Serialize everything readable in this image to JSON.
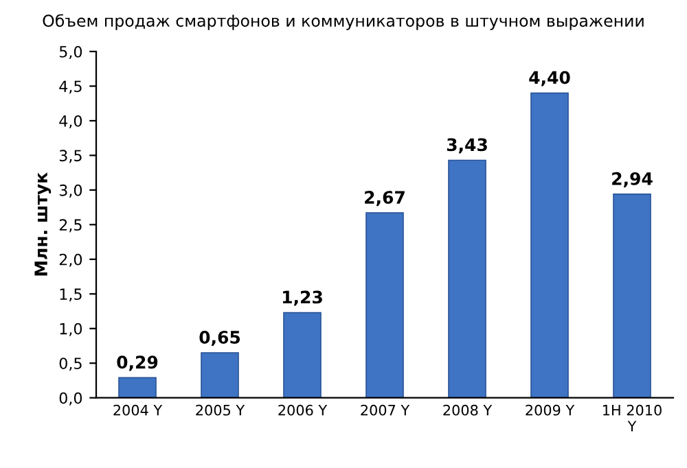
{
  "chart_data": {
    "type": "bar",
    "title": "Объем продаж смартфонов и коммуникаторов в штучном выражении",
    "ylabel": "Млн. штук",
    "categories": [
      "2004 Y",
      "2005 Y",
      "2006 Y",
      "2007 Y",
      "2008 Y",
      "2009 Y",
      "1H 2010\nY"
    ],
    "values": [
      0.29,
      0.65,
      1.23,
      2.67,
      3.43,
      4.4,
      2.94
    ],
    "value_labels": [
      "0,29",
      "0,65",
      "1,23",
      "2,67",
      "3,43",
      "4,40",
      "2,94"
    ],
    "color": "#3f74c4",
    "ylim": [
      0,
      5
    ],
    "yticks": [
      {
        "value": 0,
        "label": "0,0"
      },
      {
        "value": 0.5,
        "label": "0,5"
      },
      {
        "value": 1,
        "label": "1,0"
      },
      {
        "value": 1.5,
        "label": "1,5"
      },
      {
        "value": 2,
        "label": "2,0"
      },
      {
        "value": 2.5,
        "label": "2,5"
      },
      {
        "value": 3,
        "label": "3,0"
      },
      {
        "value": 3.5,
        "label": "3,5"
      },
      {
        "value": 4,
        "label": "4,0"
      },
      {
        "value": 4.5,
        "label": "4,5"
      },
      {
        "value": 5,
        "label": "5,0"
      }
    ]
  }
}
